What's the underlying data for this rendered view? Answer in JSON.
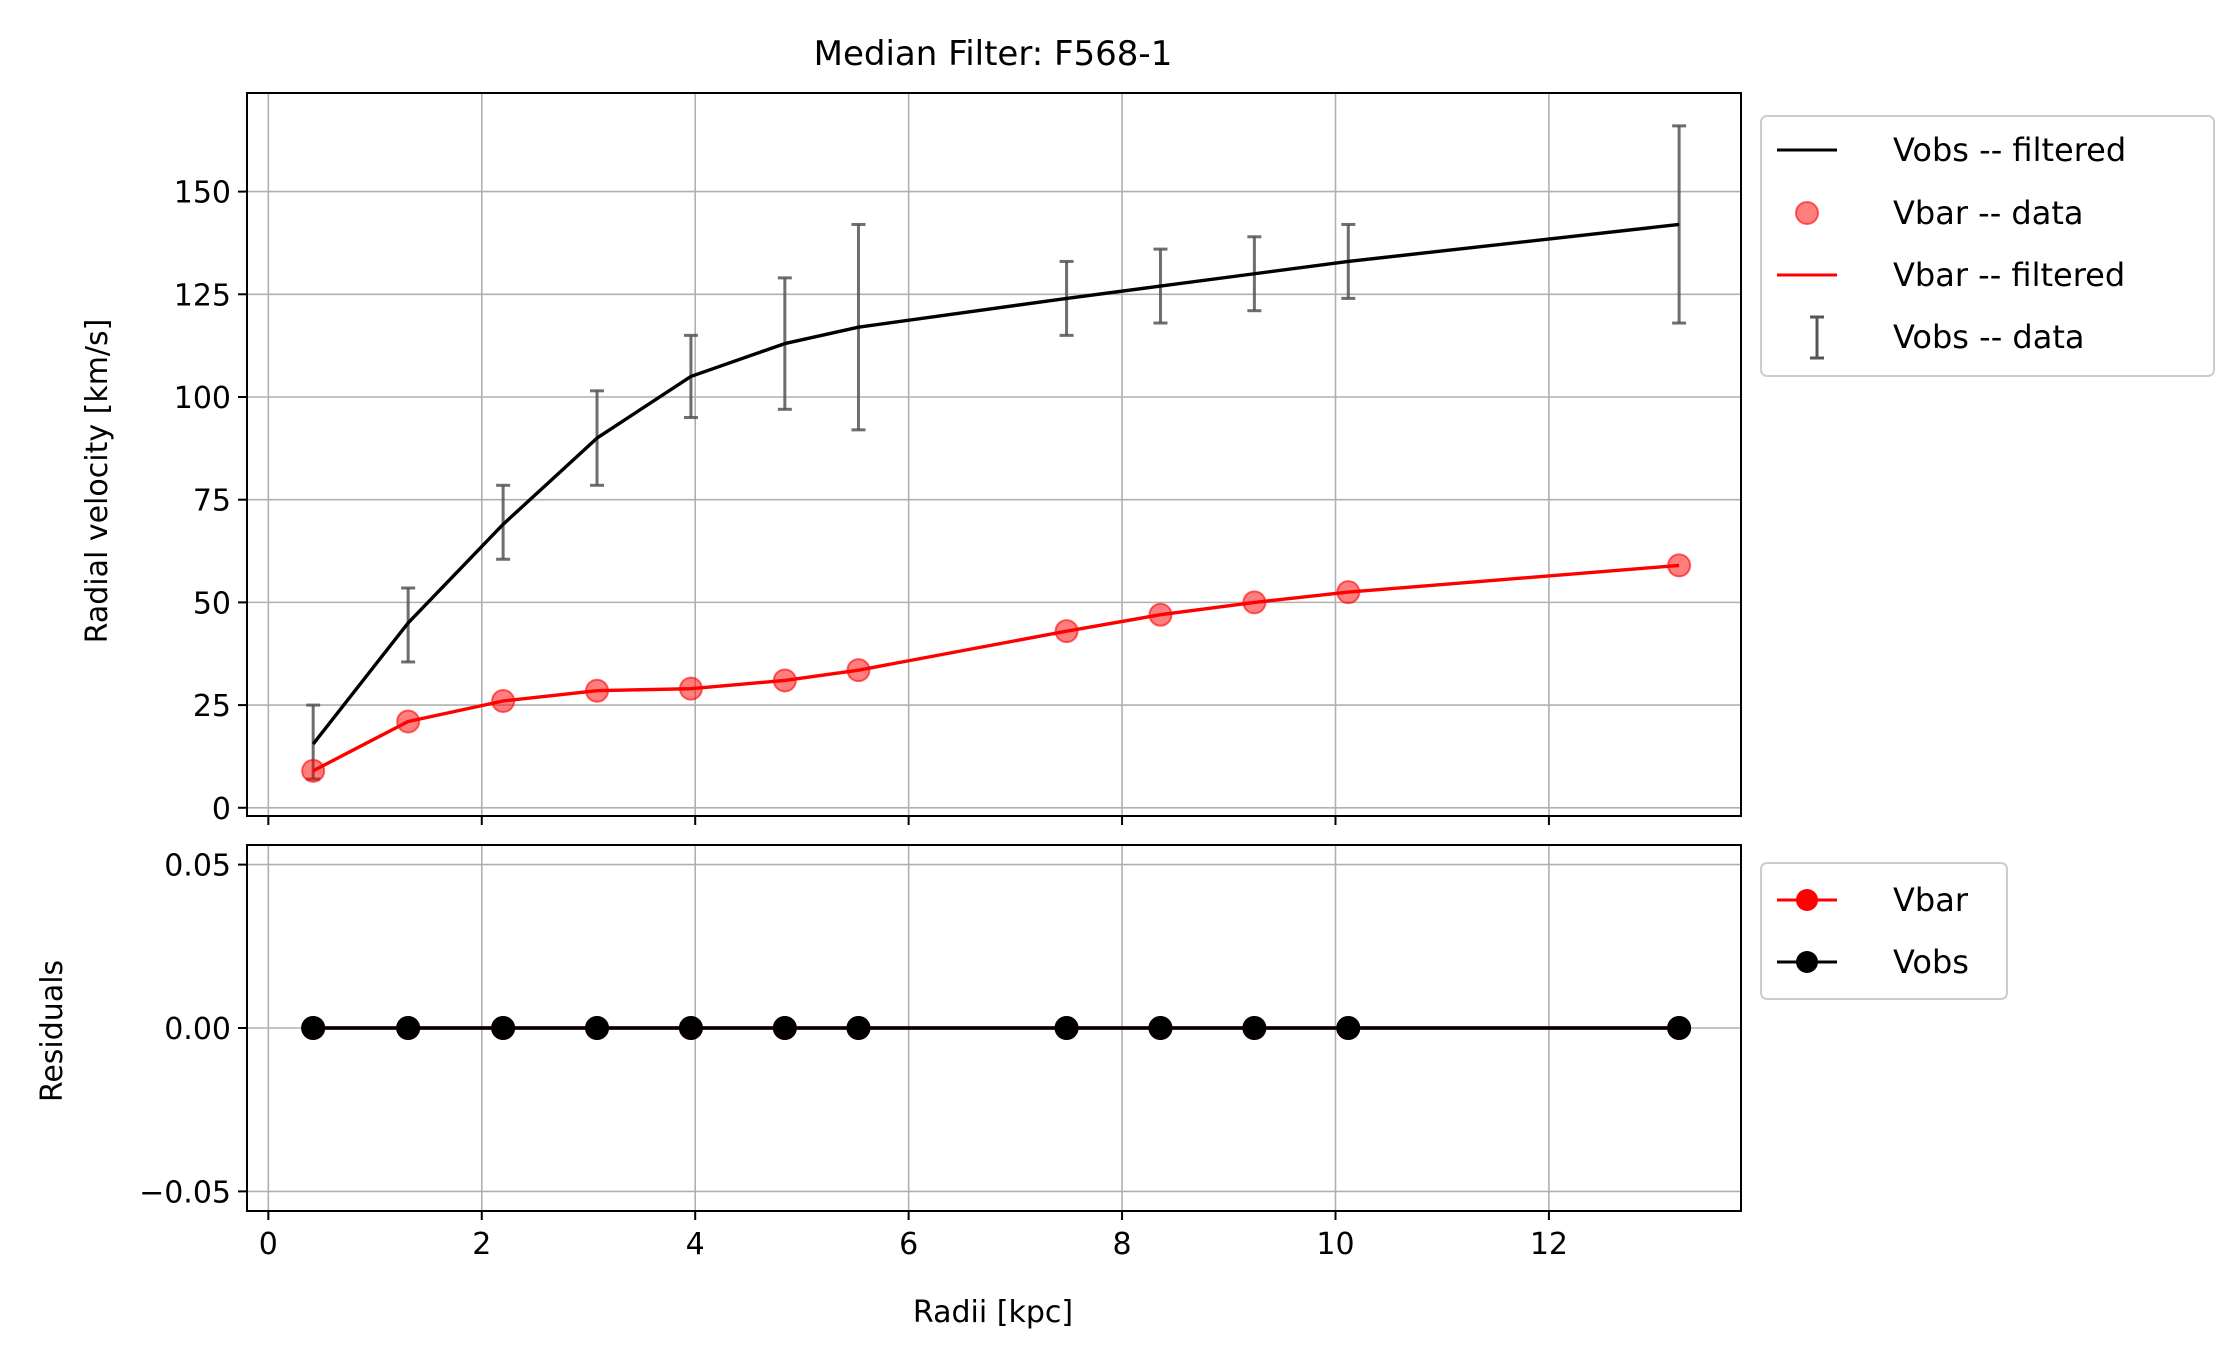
{
  "chart_data": [
    {
      "type": "line",
      "panel": "top",
      "title": "Median Filter: F568-1",
      "xlabel": "",
      "ylabel": "Radial velocity [km/s]",
      "xlim": [
        -0.2,
        13.8
      ],
      "ylim": [
        -2,
        174
      ],
      "yticks": [
        0,
        25,
        50,
        75,
        100,
        125,
        150
      ],
      "ytick_labels": [
        "0",
        "25",
        "50",
        "75",
        "100",
        "125",
        "150"
      ],
      "xticks": [
        0,
        2,
        4,
        6,
        8,
        10,
        12
      ],
      "grid": true,
      "legend_position": "outside-upper-right",
      "x": [
        0.42,
        1.31,
        2.2,
        3.08,
        3.96,
        4.84,
        5.53,
        7.48,
        8.36,
        9.24,
        10.12,
        13.22
      ],
      "series": [
        {
          "name": "Vobs -- filtered",
          "kind": "line",
          "color": "#000000",
          "values": [
            15.5,
            45,
            69,
            90,
            105,
            113,
            117,
            124,
            127,
            130,
            133,
            142
          ]
        },
        {
          "name": "Vbar -- data",
          "kind": "scatter",
          "color": "#ff0000",
          "values": [
            9,
            21,
            26,
            28.5,
            29,
            31,
            33.5,
            43,
            47,
            50,
            52.5,
            59
          ]
        },
        {
          "name": "Vbar -- filtered",
          "kind": "line",
          "color": "#ff0000",
          "values": [
            9,
            21,
            26,
            28.5,
            29,
            31,
            33.5,
            43,
            47,
            50,
            52.5,
            59
          ]
        },
        {
          "name": "Vobs -- data",
          "kind": "errorbar",
          "color": "#555555",
          "values": [
            16,
            44.5,
            69.5,
            90,
            105,
            113,
            117,
            124,
            127,
            130,
            133,
            142
          ],
          "errors": [
            9,
            9,
            9,
            11.5,
            10,
            16,
            25,
            9,
            9,
            9,
            9,
            24
          ]
        }
      ]
    },
    {
      "type": "line",
      "panel": "bottom",
      "title": "",
      "xlabel": "Radii [kpc]",
      "ylabel": "Residuals",
      "xlim": [
        -0.2,
        13.8
      ],
      "ylim": [
        -0.056,
        0.056
      ],
      "yticks": [
        -0.05,
        0.0,
        0.05
      ],
      "ytick_labels": [
        "−0.05",
        "0.00",
        "0.05"
      ],
      "xticks": [
        0,
        2,
        4,
        6,
        8,
        10,
        12
      ],
      "xtick_labels": [
        "0",
        "2",
        "4",
        "6",
        "8",
        "10",
        "12"
      ],
      "grid": true,
      "legend_position": "outside-upper-right",
      "x": [
        0.42,
        1.31,
        2.2,
        3.08,
        3.96,
        4.84,
        5.53,
        7.48,
        8.36,
        9.24,
        10.12,
        13.22
      ],
      "series": [
        {
          "name": "Vbar",
          "kind": "line-marker",
          "color": "#ff0000",
          "values": [
            0,
            0,
            0,
            0,
            0,
            0,
            0,
            0,
            0,
            0,
            0,
            0
          ]
        },
        {
          "name": "Vobs",
          "kind": "line-marker",
          "color": "#000000",
          "values": [
            0,
            0,
            0,
            0,
            0,
            0,
            0,
            0,
            0,
            0,
            0,
            0
          ]
        }
      ]
    }
  ]
}
